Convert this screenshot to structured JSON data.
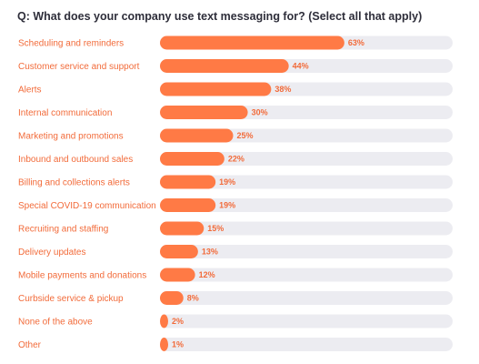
{
  "chart_data": {
    "type": "bar",
    "orientation": "horizontal",
    "title": "Q: What does your company use text messaging for? (Select all that apply)",
    "categories": [
      "Scheduling and reminders",
      "Customer service and support",
      "Alerts",
      "Internal communication",
      "Marketing and promotions",
      "Inbound and outbound sales",
      "Billing and collections alerts",
      "Special COVID-19 communication",
      "Recruiting and staffing",
      "Delivery updates",
      "Mobile payments and donations",
      "Curbside service & pickup",
      "None of the above",
      "Other"
    ],
    "values": [
      63,
      44,
      38,
      30,
      25,
      22,
      19,
      19,
      15,
      13,
      12,
      8,
      2,
      1
    ],
    "value_labels": [
      "63%",
      "44%",
      "38%",
      "30%",
      "25%",
      "22%",
      "19%",
      "19%",
      "15%",
      "13%",
      "12%",
      "8%",
      "2%",
      "1%"
    ],
    "xlim": [
      0,
      100
    ],
    "grid": false,
    "legend": "none"
  },
  "colors": {
    "bar": "#ff7a45",
    "track": "#ececf1",
    "label": "#f26b3a",
    "title": "#2e2e3a"
  }
}
